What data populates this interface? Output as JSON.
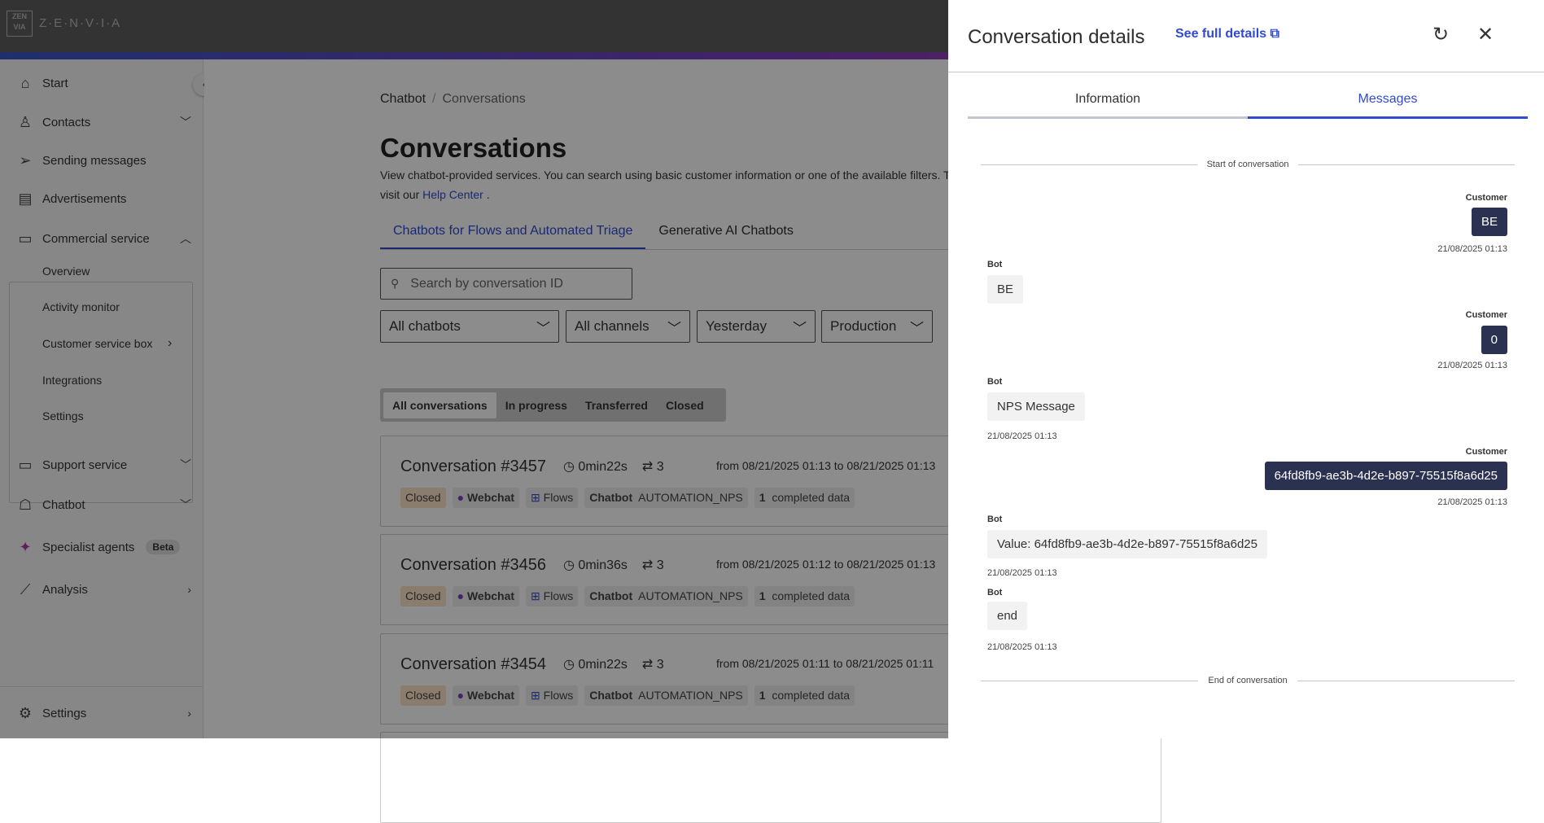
{
  "brand": {
    "name": "Z·E·N·V·I·A",
    "logo_text": "ZEN VIA"
  },
  "sidebar": {
    "items": [
      {
        "label": "Start",
        "icon": "home-icon"
      },
      {
        "label": "Contacts",
        "icon": "person-icon"
      },
      {
        "label": "Sending messages",
        "icon": "send-icon"
      },
      {
        "label": "Advertisements",
        "icon": "document-icon"
      },
      {
        "label": "Commercial service",
        "icon": "chat-icon"
      },
      {
        "label": "Support service",
        "icon": "headset-icon"
      },
      {
        "label": "Chatbot",
        "icon": "robot-icon"
      },
      {
        "label": "Specialist agents",
        "icon": "sparkle-icon",
        "badge": "Beta"
      },
      {
        "label": "Analysis",
        "icon": "chart-icon"
      },
      {
        "label": "Settings",
        "icon": "gear-icon"
      }
    ],
    "sub_items": [
      "Overview",
      "Activity monitor",
      "Customer service box",
      "Integrations",
      "Settings"
    ]
  },
  "main": {
    "breadcrumb": [
      "Chatbot",
      "Conversations"
    ],
    "title": "Conversations",
    "description": "View chatbot-provided services. You can search using basic customer information or one of the available filters. T",
    "description2": "visit our ",
    "help_link": "Help Center",
    "description2_end": " .",
    "tabs": [
      "Chatbots for Flows and Automated Triage",
      "Generative AI Chatbots"
    ],
    "search_placeholder": "Search by conversation ID",
    "filters": [
      "All chatbots",
      "All channels",
      "Yesterday",
      "Production"
    ],
    "status_filters": [
      "All conversations",
      "In progress",
      "Transferred",
      "Closed"
    ],
    "conversations": [
      {
        "title": "Conversation #3457",
        "duration": "0min22s",
        "transfers": "3",
        "dates": "from 08/21/2025 01:13 to 08/21/2025 01:13",
        "status": "Closed",
        "channel": "Webchat",
        "type": "Flows",
        "chatbot_label": "Chatbot",
        "chatbot": "AUTOMATION_NPS",
        "data_count": "1",
        "data_label": "completed data"
      },
      {
        "title": "Conversation #3456",
        "duration": "0min36s",
        "transfers": "3",
        "dates": "from 08/21/2025 01:12 to 08/21/2025 01:13",
        "status": "Closed",
        "channel": "Webchat",
        "type": "Flows",
        "chatbot_label": "Chatbot",
        "chatbot": "AUTOMATION_NPS",
        "data_count": "1",
        "data_label": "completed data"
      },
      {
        "title": "Conversation #3454",
        "duration": "0min22s",
        "transfers": "3",
        "dates": "from 08/21/2025 01:11 to 08/21/2025 01:11",
        "status": "Closed",
        "channel": "Webchat",
        "type": "Flows",
        "chatbot_label": "Chatbot",
        "chatbot": "AUTOMATION_NPS",
        "data_count": "1",
        "data_label": "completed data"
      }
    ]
  },
  "panel": {
    "title": "Conversation details",
    "full_details": "See full details",
    "tabs": [
      "Information",
      "Messages"
    ],
    "active_tab": "Messages",
    "start_label": "Start of conversation",
    "end_label": "End of conversation",
    "messages": [
      {
        "sender": "Customer",
        "text": "BE",
        "time": "21/08/2025 01:13"
      },
      {
        "sender": "Bot",
        "text": "BE"
      },
      {
        "sender": "Customer",
        "text": "0",
        "time": "21/08/2025 01:13"
      },
      {
        "sender": "Bot",
        "text": "NPS Message",
        "time": "21/08/2025 01:13"
      },
      {
        "sender": "Customer",
        "text": "64fd8fb9-ae3b-4d2e-b897-75515f8a6d25",
        "time": "21/08/2025 01:13"
      },
      {
        "sender": "Bot",
        "text": "Value: 64fd8fb9-ae3b-4d2e-b897-75515f8a6d25",
        "time": "21/08/2025 01:13"
      },
      {
        "sender": "Bot",
        "text": "end",
        "time": "21/08/2025 01:13"
      }
    ]
  },
  "colors": {
    "accent": "#2f4bd0",
    "customer_bubble": "#2b3150",
    "bot_bubble": "#f2f2f2",
    "closed_tag": "#fbe3c6"
  }
}
